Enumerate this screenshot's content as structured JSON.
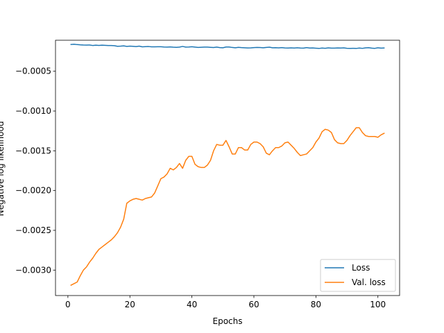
{
  "chart_data": {
    "type": "line",
    "xlabel": "Epochs",
    "ylabel": "Negative log likelihood",
    "xlim": [
      -4,
      107
    ],
    "ylim": [
      -0.00332,
      -0.00011
    ],
    "xticks": [
      0,
      20,
      40,
      60,
      80,
      100
    ],
    "xtick_labels": [
      "0",
      "20",
      "40",
      "60",
      "80",
      "100"
    ],
    "yticks": [
      -0.003,
      -0.0025,
      -0.002,
      -0.0015,
      -0.001,
      -0.0005
    ],
    "ytick_labels": [
      "−0.0030",
      "−0.0025",
      "−0.0020",
      "−0.0015",
      "−0.0010",
      "−0.0005"
    ],
    "legend_position": "lower-right",
    "series": [
      {
        "name": "Loss",
        "color": "#1f77b4",
        "x": [
          1,
          2,
          3,
          4,
          5,
          6,
          7,
          8,
          9,
          10,
          11,
          12,
          13,
          14,
          15,
          16,
          17,
          18,
          19,
          20,
          21,
          22,
          23,
          24,
          25,
          26,
          27,
          28,
          29,
          30,
          31,
          32,
          33,
          34,
          35,
          36,
          37,
          38,
          39,
          40,
          41,
          42,
          43,
          44,
          45,
          46,
          47,
          48,
          49,
          50,
          51,
          52,
          53,
          54,
          55,
          56,
          57,
          58,
          59,
          60,
          61,
          62,
          63,
          64,
          65,
          66,
          67,
          68,
          69,
          70,
          71,
          72,
          73,
          74,
          75,
          76,
          77,
          78,
          79,
          80,
          81,
          82,
          83,
          84,
          85,
          86,
          87,
          88,
          89,
          90,
          91,
          92,
          93,
          94,
          95,
          96,
          97,
          98,
          99,
          100,
          101,
          102
        ],
        "values": [
          -0.000163,
          -0.00016,
          -0.000165,
          -0.000168,
          -0.00017,
          -0.000171,
          -0.00017,
          -0.000176,
          -0.000172,
          -0.000175,
          -0.000172,
          -0.000174,
          -0.000176,
          -0.000177,
          -0.000179,
          -0.000186,
          -0.000184,
          -0.000181,
          -0.000187,
          -0.000184,
          -0.000186,
          -0.00019,
          -0.000184,
          -0.000193,
          -0.000191,
          -0.000189,
          -0.000193,
          -0.000193,
          -0.000192,
          -0.000192,
          -0.000195,
          -0.000196,
          -0.000194,
          -0.000197,
          -0.000199,
          -0.000196,
          -0.000188,
          -0.000196,
          -0.000195,
          -0.000192,
          -0.000196,
          -0.0002,
          -0.000198,
          -0.000196,
          -0.000196,
          -0.000199,
          -0.000202,
          -0.000196,
          -0.000203,
          -0.000205,
          -0.000195,
          -0.000195,
          -0.000201,
          -0.000205,
          -0.000199,
          -0.000203,
          -0.000205,
          -0.000207,
          -0.000206,
          -0.000203,
          -0.000201,
          -0.000202,
          -0.000205,
          -0.0002,
          -0.000197,
          -0.000205,
          -0.000204,
          -0.000206,
          -0.000203,
          -0.000207,
          -0.000208,
          -0.000206,
          -0.000208,
          -0.000205,
          -0.000208,
          -0.000209,
          -0.000203,
          -0.000208,
          -0.000207,
          -0.00021,
          -0.000213,
          -0.000208,
          -0.000211,
          -0.000206,
          -0.000209,
          -0.000209,
          -0.000207,
          -0.000208,
          -0.000206,
          -0.000211,
          -0.000212,
          -0.000211,
          -0.000213,
          -0.000208,
          -0.000212,
          -0.000206,
          -0.000204,
          -0.000209,
          -0.000212,
          -0.000205,
          -0.000209,
          -0.000207
        ]
      },
      {
        "name": "Val. loss",
        "color": "#ff7f0e",
        "x": [
          1,
          2,
          3,
          4,
          5,
          6,
          7,
          8,
          9,
          10,
          11,
          12,
          13,
          14,
          15,
          16,
          17,
          18,
          19,
          20,
          21,
          22,
          23,
          24,
          25,
          26,
          27,
          28,
          29,
          30,
          31,
          32,
          33,
          34,
          35,
          36,
          37,
          38,
          39,
          40,
          41,
          42,
          43,
          44,
          45,
          46,
          47,
          48,
          49,
          50,
          51,
          52,
          53,
          54,
          55,
          56,
          57,
          58,
          59,
          60,
          61,
          62,
          63,
          64,
          65,
          66,
          67,
          68,
          69,
          70,
          71,
          72,
          73,
          74,
          75,
          76,
          77,
          78,
          79,
          80,
          81,
          82,
          83,
          84,
          85,
          86,
          87,
          88,
          89,
          90,
          91,
          92,
          93,
          94,
          95,
          96,
          97,
          98,
          99,
          100,
          101,
          102
        ],
        "values": [
          -0.00319,
          -0.00317,
          -0.00315,
          -0.00307,
          -0.003,
          -0.00296,
          -0.0029,
          -0.00285,
          -0.00279,
          -0.00274,
          -0.00271,
          -0.00268,
          -0.00265,
          -0.00262,
          -0.00258,
          -0.00253,
          -0.00246,
          -0.00236,
          -0.00216,
          -0.00213,
          -0.00211,
          -0.0021,
          -0.00211,
          -0.00212,
          -0.0021,
          -0.00209,
          -0.00208,
          -0.00203,
          -0.00194,
          -0.00185,
          -0.00183,
          -0.00179,
          -0.00172,
          -0.00174,
          -0.00171,
          -0.00166,
          -0.00172,
          -0.00162,
          -0.00157,
          -0.00157,
          -0.00167,
          -0.0017,
          -0.00171,
          -0.00171,
          -0.00168,
          -0.00162,
          -0.0015,
          -0.00142,
          -0.00143,
          -0.00143,
          -0.00137,
          -0.00145,
          -0.00154,
          -0.00154,
          -0.00146,
          -0.00146,
          -0.00149,
          -0.00149,
          -0.00142,
          -0.00139,
          -0.00139,
          -0.00141,
          -0.00145,
          -0.00153,
          -0.00155,
          -0.0015,
          -0.00146,
          -0.00146,
          -0.00144,
          -0.0014,
          -0.00139,
          -0.00143,
          -0.00147,
          -0.00152,
          -0.00156,
          -0.00155,
          -0.00154,
          -0.0015,
          -0.00146,
          -0.00139,
          -0.00134,
          -0.00126,
          -0.00123,
          -0.00124,
          -0.00127,
          -0.00136,
          -0.0014,
          -0.00141,
          -0.00141,
          -0.00137,
          -0.00131,
          -0.00126,
          -0.00121,
          -0.00121,
          -0.00127,
          -0.00131,
          -0.00132,
          -0.00132,
          -0.00132,
          -0.00133,
          -0.0013,
          -0.00128
        ]
      }
    ]
  }
}
